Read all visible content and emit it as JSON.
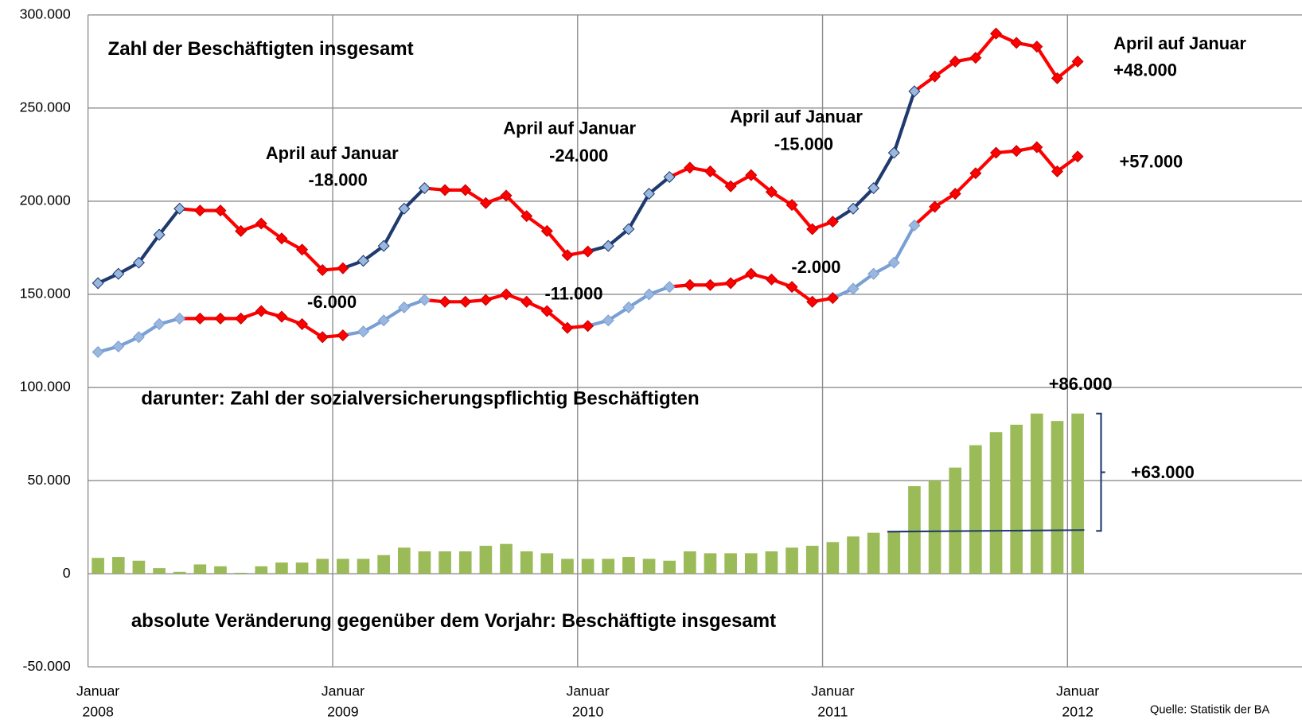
{
  "chart_data": {
    "type": "combo",
    "categories": [
      "Januar 2008",
      null,
      null,
      null,
      null,
      null,
      null,
      null,
      null,
      null,
      null,
      null,
      "Januar 2009",
      null,
      null,
      null,
      null,
      null,
      null,
      null,
      null,
      null,
      null,
      null,
      "Januar 2010",
      null,
      null,
      null,
      null,
      null,
      null,
      null,
      null,
      null,
      null,
      null,
      "Januar 2011",
      null,
      null,
      null,
      null,
      null,
      null,
      null,
      null,
      null,
      null,
      null,
      "Januar 2012"
    ],
    "ylim": [
      -50000,
      300000
    ],
    "yticks": [
      {
        "value": -50000,
        "label": "-50.000"
      },
      {
        "value": 0,
        "label": "0"
      },
      {
        "value": 50000,
        "label": "50.000"
      },
      {
        "value": 100000,
        "label": "100.000"
      },
      {
        "value": 150000,
        "label": "150.000"
      },
      {
        "value": 200000,
        "label": "200.000"
      },
      {
        "value": 250000,
        "label": "250.000"
      },
      {
        "value": 300000,
        "label": "300.000"
      }
    ],
    "grid": true,
    "series": [
      {
        "type": "line",
        "color": "#ff0000",
        "highlight_color": "#1f3a6e",
        "marker_color": "#9ab7e0",
        "values": [
          156000,
          161000,
          167000,
          182000,
          196000,
          195000,
          195000,
          184000,
          188000,
          180000,
          174000,
          163000,
          164000,
          168000,
          176000,
          196000,
          207000,
          206000,
          206000,
          199000,
          203000,
          192000,
          184000,
          171000,
          173000,
          176000,
          185000,
          204000,
          213000,
          218000,
          216000,
          208000,
          214000,
          205000,
          198000,
          185000,
          189000,
          196000,
          207000,
          226000,
          259000,
          267000,
          275000,
          277000,
          290000,
          285000,
          283000,
          266000,
          275000
        ]
      },
      {
        "type": "line",
        "color": "#ff0000",
        "highlight_color": "#7a9fd4",
        "marker_color": "#9ab7e0",
        "values": [
          119000,
          122000,
          127000,
          134000,
          137000,
          137000,
          137000,
          137000,
          141000,
          138000,
          134000,
          127000,
          128000,
          130000,
          136000,
          143000,
          147000,
          146000,
          146000,
          147000,
          150000,
          146000,
          141000,
          132000,
          133000,
          136000,
          143000,
          150000,
          154000,
          155000,
          155000,
          156000,
          161000,
          158000,
          154000,
          146000,
          148000,
          153000,
          161000,
          167000,
          187000,
          197000,
          204000,
          215000,
          226000,
          227000,
          229000,
          216000,
          224000
        ]
      },
      {
        "type": "bar",
        "color": "#9bbb59",
        "values": [
          8500,
          9000,
          7000,
          3000,
          1000,
          5000,
          4000,
          500,
          4000,
          6000,
          6000,
          8000,
          8000,
          8000,
          10000,
          14000,
          12000,
          12000,
          12000,
          15000,
          16000,
          12000,
          11000,
          8000,
          8000,
          8000,
          9000,
          8000,
          7000,
          12000,
          11000,
          11000,
          11000,
          12000,
          14000,
          15000,
          17000,
          20000,
          22000,
          23000,
          47000,
          50000,
          57000,
          69000,
          76000,
          80000,
          86000,
          82000,
          86000
        ]
      }
    ],
    "annotations": [
      "Zahl der Beschäftigten insgesamt",
      "April auf Januar",
      "-18.000",
      "April auf  Januar",
      "-24.000",
      "April auf  Januar",
      "-15.000",
      "April auf Januar",
      "+48.000",
      "+57.000",
      "-6.000",
      "-11.000",
      "-2.000",
      "darunter: Zahl der  sozialversicherungspflichtig Beschäftigten",
      "+86.000",
      "+63.000",
      "absolute Veränderung gegenüber dem Vorjahr: Beschäftigte insgesamt"
    ],
    "source": "Quelle: Statistik der BA"
  }
}
